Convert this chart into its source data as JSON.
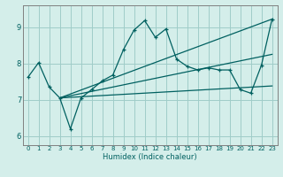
{
  "xlabel": "Humidex (Indice chaleur)",
  "bg_color": "#d4eeea",
  "grid_color": "#a0ccc8",
  "line_color": "#006060",
  "spine_color": "#808080",
  "xlim": [
    -0.5,
    23.5
  ],
  "ylim": [
    5.75,
    9.6
  ],
  "xticks": [
    0,
    1,
    2,
    3,
    4,
    5,
    6,
    7,
    8,
    9,
    10,
    11,
    12,
    13,
    14,
    15,
    16,
    17,
    18,
    19,
    20,
    21,
    22,
    23
  ],
  "yticks": [
    6,
    7,
    8,
    9
  ],
  "line1_x": [
    0,
    1,
    2,
    3,
    4,
    5,
    6,
    7,
    8,
    9,
    10,
    11,
    12,
    13,
    14,
    15,
    16,
    17,
    18,
    19,
    20,
    21,
    22,
    23
  ],
  "line1_y": [
    7.62,
    8.02,
    7.35,
    7.05,
    6.2,
    7.05,
    7.28,
    7.52,
    7.68,
    8.38,
    8.92,
    9.18,
    8.72,
    8.95,
    8.12,
    7.92,
    7.82,
    7.88,
    7.82,
    7.82,
    7.28,
    7.18,
    7.95,
    9.22
  ],
  "line2_x": [
    3,
    23
  ],
  "line2_y": [
    7.05,
    9.22
  ],
  "line3_x": [
    3,
    23
  ],
  "line3_y": [
    7.05,
    7.38
  ],
  "line4_x": [
    3,
    23
  ],
  "line4_y": [
    7.05,
    8.25
  ],
  "xlabel_fontsize": 6.0,
  "tick_fontsize_x": 5.0,
  "tick_fontsize_y": 6.0
}
